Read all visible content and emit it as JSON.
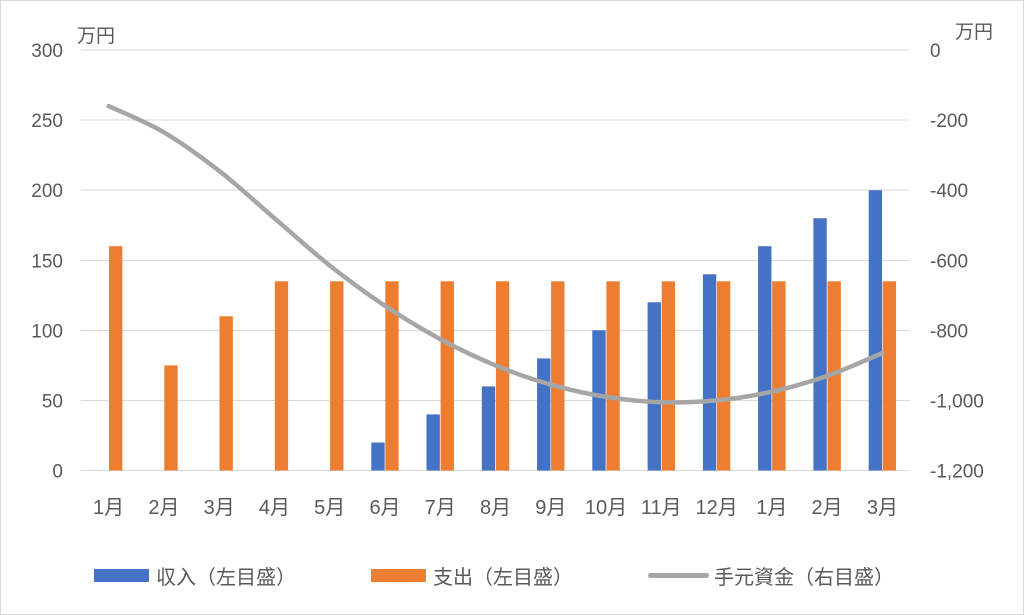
{
  "chart_data": {
    "type": "combo",
    "title": "",
    "categories": [
      "1月",
      "2月",
      "3月",
      "4月",
      "5月",
      "6月",
      "7月",
      "8月",
      "9月",
      "10月",
      "11月",
      "12月",
      "1月",
      "2月",
      "3月"
    ],
    "series": [
      {
        "name": "収入（左目盛）",
        "type": "bar",
        "axis": "left",
        "color": "#4472C4",
        "values": [
          0,
          0,
          0,
          0,
          0,
          20,
          40,
          60,
          80,
          100,
          120,
          140,
          160,
          180,
          200
        ]
      },
      {
        "name": "支出（左目盛）",
        "type": "bar",
        "axis": "left",
        "color": "#ED7D31",
        "values": [
          160,
          75,
          110,
          135,
          135,
          135,
          135,
          135,
          135,
          135,
          135,
          135,
          135,
          135,
          135
        ]
      },
      {
        "name": "手元資金（右目盛）",
        "type": "line",
        "axis": "right",
        "color": "#A6A6A6",
        "smooth": true,
        "values": [
          -160,
          -235,
          -345,
          -480,
          -615,
          -730,
          -825,
          -900,
          -955,
          -990,
          -1005,
          -1000,
          -975,
          -930,
          -865
        ]
      }
    ],
    "left_axis": {
      "unit_label": "万円",
      "min": 0,
      "max": 300,
      "step": 50,
      "tick_labels": [
        "300",
        "250",
        "200",
        "150",
        "100",
        "50",
        "0"
      ]
    },
    "right_axis": {
      "unit_label": "万円",
      "min": -1200,
      "max": 0,
      "step": 200,
      "tick_labels": [
        "0",
        "-200",
        "-400",
        "-600",
        "-800",
        "-1,000",
        "-1,200"
      ]
    },
    "grid": true,
    "legend_position": "bottom",
    "colors": {
      "grid": "#D9D9D9",
      "text": "#595959",
      "border": "#D9D9D9",
      "background": "#FFFFFF"
    }
  }
}
